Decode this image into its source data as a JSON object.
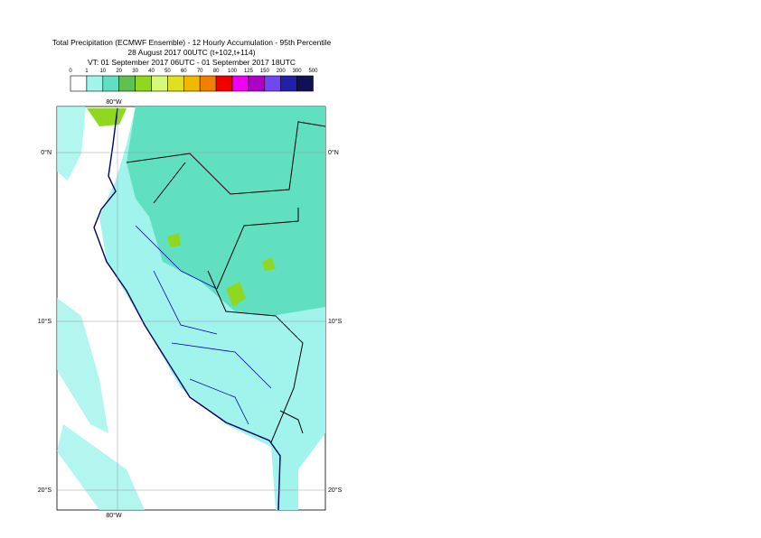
{
  "header": {
    "title": "Total Precipitation (ECMWF Ensemble) - 12 Hourly Accumulation - 95th Percentile",
    "run": "28 August 2017 00UTC (t+102,t+114)",
    "valid": "VT: 01 September 2017 06UTC - 01 September 2017 18UTC"
  },
  "legend": {
    "thresholds": [
      0,
      1,
      10,
      20,
      30,
      40,
      50,
      60,
      70,
      80,
      100,
      125,
      150,
      200,
      300,
      500
    ],
    "colors": [
      "#ffffff",
      "#a0f4ec",
      "#60e0c0",
      "#60c050",
      "#90d820",
      "#d8f878",
      "#e0e020",
      "#f0b800",
      "#f08000",
      "#f00000",
      "#f000f0",
      "#b000c8",
      "#7048f0",
      "#2020a8",
      "#101058"
    ]
  },
  "map": {
    "lat_labels": [
      "0°N",
      "10°S",
      "20°S"
    ],
    "lon_label": "80°W"
  }
}
